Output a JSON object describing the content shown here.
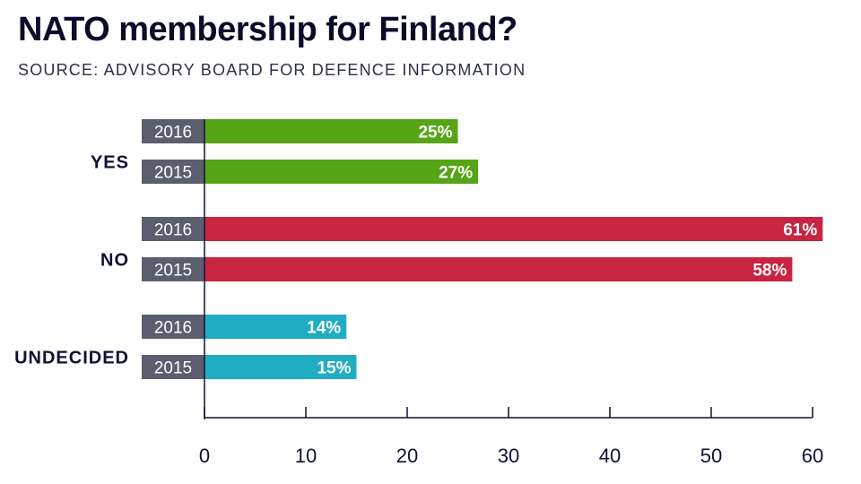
{
  "title": "NATO membership for Finland?",
  "subtitle": "SOURCE: ADVISORY BOARD FOR DEFENCE INFORMATION",
  "chart_data": {
    "type": "bar",
    "orientation": "horizontal",
    "title": "NATO membership for Finland?",
    "subtitle": "SOURCE: ADVISORY BOARD FOR DEFENCE INFORMATION",
    "xlabel": "",
    "ylabel": "",
    "xlim": [
      0,
      60
    ],
    "xticks": [
      0,
      10,
      20,
      30,
      40,
      50,
      60
    ],
    "grid": false,
    "value_suffix": "%",
    "groups": [
      {
        "label": "YES",
        "color": "#55a516",
        "bars": [
          {
            "year": "2016",
            "value": 25
          },
          {
            "year": "2015",
            "value": 27
          }
        ]
      },
      {
        "label": "NO",
        "color": "#c72540",
        "bars": [
          {
            "year": "2016",
            "value": 61
          },
          {
            "year": "2015",
            "value": 58
          }
        ]
      },
      {
        "label": "UNDECIDED",
        "color": "#21adc1",
        "bars": [
          {
            "year": "2016",
            "value": 14
          },
          {
            "year": "2015",
            "value": 15
          }
        ]
      }
    ],
    "year_tag_color": "#5a5e6e"
  }
}
